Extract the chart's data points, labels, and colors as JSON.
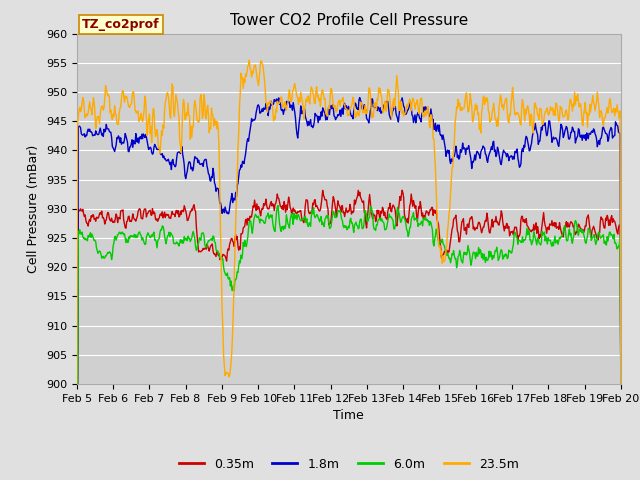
{
  "title": "Tower CO2 Profile Cell Pressure",
  "xlabel": "Time",
  "ylabel": "Cell Pressure (mBar)",
  "ylim": [
    900,
    960
  ],
  "yticks": [
    900,
    905,
    910,
    915,
    920,
    925,
    930,
    935,
    940,
    945,
    950,
    955,
    960
  ],
  "x_labels": [
    "Feb 5",
    "Feb 6",
    "Feb 7",
    "Feb 8",
    "Feb 9",
    "Feb 10",
    "Feb 11",
    "Feb 12",
    "Feb 13",
    "Feb 14",
    "Feb 15",
    "Feb 16",
    "Feb 17",
    "Feb 18",
    "Feb 19",
    "Feb 20"
  ],
  "legend_label": "TZ_co2prof",
  "series_labels": [
    "0.35m",
    "1.8m",
    "6.0m",
    "23.5m"
  ],
  "colors": [
    "#cc0000",
    "#0000cc",
    "#00cc00",
    "#ffaa00"
  ],
  "background_color": "#e0e0e0",
  "plot_bg_color": "#d0d0d0",
  "grid_color": "#ffffff",
  "title_fontsize": 11,
  "axis_fontsize": 9,
  "tick_fontsize": 8,
  "legend_fontsize": 9,
  "linewidth": 1.0
}
